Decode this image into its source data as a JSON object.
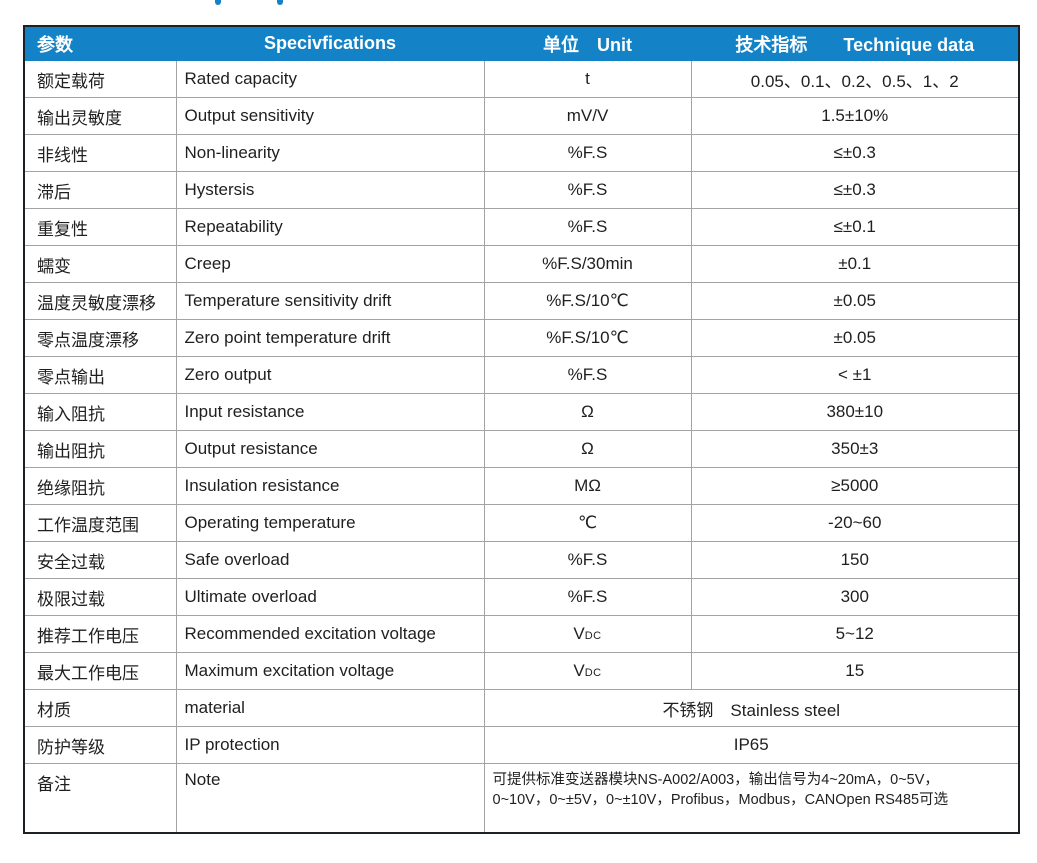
{
  "colors": {
    "header_bg": "#1482c6",
    "header_text": "#ffffff",
    "grid_line": "#a3a3a3",
    "outer_border": "#1c2126",
    "body_text": "#1f1f1f",
    "remnant_blue": "#1482c6"
  },
  "table": {
    "columns": {
      "param": "参数",
      "spec": "Specivfications",
      "unit": "单位　Unit",
      "value": "技术指标　　Technique data"
    },
    "rows": [
      {
        "cn": "额定载荷",
        "en": "Rated capacity",
        "unit": "t",
        "value": "0.05、0.1、0.2、0.5、1、2"
      },
      {
        "cn": "输出灵敏度",
        "en": "Output sensitivity",
        "unit": "mV/V",
        "value": "1.5±10%"
      },
      {
        "cn": "非线性",
        "en": "Non-linearity",
        "unit": "%F.S",
        "value": "≤±0.3"
      },
      {
        "cn": "滞后",
        "en": "Hystersis",
        "unit": "%F.S",
        "value": "≤±0.3"
      },
      {
        "cn": "重复性",
        "en": "Repeatability",
        "unit": "%F.S",
        "value": "≤±0.1"
      },
      {
        "cn": "蠕变",
        "en": "Creep",
        "unit": "%F.S/30min",
        "value": "±0.1"
      },
      {
        "cn": "温度灵敏度漂移",
        "en": "Temperature sensitivity drift",
        "unit": "%F.S/10℃",
        "value": "±0.05"
      },
      {
        "cn": "零点温度漂移",
        "en": "Zero point temperature drift",
        "unit": "%F.S/10℃",
        "value": "±0.05"
      },
      {
        "cn": "零点输出",
        "en": "Zero output",
        "unit": "%F.S",
        "value": "< ±1"
      },
      {
        "cn": "输入阻抗",
        "en": "Input resistance",
        "unit": "Ω",
        "value": "380±10"
      },
      {
        "cn": "输出阻抗",
        "en": "Output resistance",
        "unit": "Ω",
        "value": "350±3"
      },
      {
        "cn": "绝缘阻抗",
        "en": "Insulation resistance",
        "unit": "MΩ",
        "value": "≥5000"
      },
      {
        "cn": "工作温度范围",
        "en": "Operating temperature",
        "unit": "℃",
        "value": "-20~60"
      },
      {
        "cn": "安全过载",
        "en": "Safe overload",
        "unit": "%F.S",
        "value": "150"
      },
      {
        "cn": "极限过载",
        "en": "Ultimate overload",
        "unit": "%F.S",
        "value": "300"
      },
      {
        "cn": "推荐工作电压",
        "en": "Recommended excitation voltage",
        "unit_main": "V",
        "unit_sub": "DC",
        "value": "5~12"
      },
      {
        "cn": "最大工作电压",
        "en": "Maximum excitation voltage",
        "unit_main": "V",
        "unit_sub": "DC",
        "value": "15"
      }
    ],
    "material_row": {
      "cn": "材质",
      "en": "material",
      "value": "不锈钢　Stainless steel"
    },
    "protection_row": {
      "cn": "防护等级",
      "en": "IP protection",
      "value": "IP65"
    },
    "note_row": {
      "cn": "备注",
      "en": "Note",
      "line1": "可提供标准变送器模块NS-A002/A003，输出信号为4~20mA，0~5V，",
      "line2": "0~10V，0~±5V，0~±10V，Profibus，Modbus，CANOpen RS485可选"
    }
  }
}
